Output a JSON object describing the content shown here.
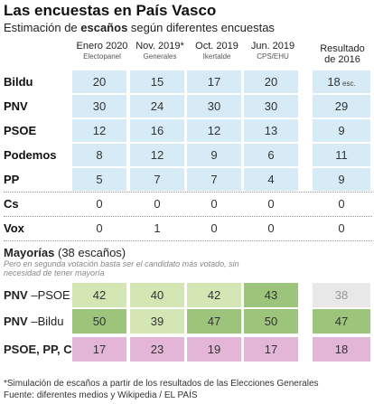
{
  "title": "Las encuestas en País Vasco",
  "subtitle_pre": "Estimación de ",
  "subtitle_bold": "escaños",
  "subtitle_post": " según diferentes encuestas",
  "columns": [
    {
      "line1": "Enero 2020",
      "line2": "Electopanel"
    },
    {
      "line1": "Nov. 2019*",
      "line2": "Generales"
    },
    {
      "line1": "Oct. 2019",
      "line2": "Ikertalde"
    },
    {
      "line1": "Jun. 2019",
      "line2": "CPS/EHU"
    },
    {
      "line1": "Resultado",
      "line2": "de 2016"
    }
  ],
  "colors": {
    "seat_cell": "#d6ebf6",
    "majority_light_green": "#d4e6b4",
    "majority_dark_green": "#9cc47a",
    "majority_pink": "#e3b5d6",
    "majority_grey": "#e8e8e8"
  },
  "chart_data": {
    "type": "table",
    "parties": [
      {
        "name": "Bildu",
        "values": [
          "20",
          "15",
          "17",
          "20"
        ],
        "result": "18",
        "result_note": "esc."
      },
      {
        "name": "PNV",
        "values": [
          "30",
          "24",
          "30",
          "30"
        ],
        "result": "29",
        "result_note": ""
      },
      {
        "name": "PSOE",
        "values": [
          "12",
          "16",
          "12",
          "13"
        ],
        "result": "9",
        "result_note": ""
      },
      {
        "name": "Podemos",
        "values": [
          "8",
          "12",
          "9",
          "6"
        ],
        "result": "11",
        "result_note": ""
      },
      {
        "name": "PP",
        "values": [
          "5",
          "7",
          "7",
          "4"
        ],
        "result": "9",
        "result_note": ""
      },
      {
        "name": "Cs",
        "values": [
          "0",
          "0",
          "0",
          "0"
        ],
        "result": "0",
        "result_note": ""
      },
      {
        "name": "Vox",
        "values": [
          "0",
          "1",
          "0",
          "0"
        ],
        "result": "0",
        "result_note": ""
      }
    ],
    "majorities": [
      {
        "label_bold": "PNV",
        "label_rest": " –PSOE",
        "values": [
          "42",
          "40",
          "42",
          "43"
        ],
        "result": "38",
        "colors": [
          "light",
          "light",
          "light",
          "dark"
        ],
        "result_color": "grey"
      },
      {
        "label_bold": "PNV",
        "label_rest": " –Bildu",
        "values": [
          "50",
          "39",
          "47",
          "50"
        ],
        "result": "47",
        "colors": [
          "dark",
          "light",
          "dark",
          "dark"
        ],
        "result_color": "dark"
      },
      {
        "label_bold": "PSOE, PP, Cs",
        "label_rest": "",
        "values": [
          "17",
          "23",
          "19",
          "17"
        ],
        "result": "18",
        "colors": [
          "pink",
          "pink",
          "pink",
          "pink"
        ],
        "result_color": "pink"
      }
    ]
  },
  "majorities_title_bold": "Mayorías",
  "majorities_title_rest": " (38 escaños)",
  "majorities_note": "Pero en segunda votación basta ser el candidato más votado, sin necesidad de tener mayoría",
  "footnote": "*Simulación de escaños a partir de los resultados de las Elecciones Generales",
  "source": "Fuente: diferentes medios y Wikipedia / EL PAÍS"
}
